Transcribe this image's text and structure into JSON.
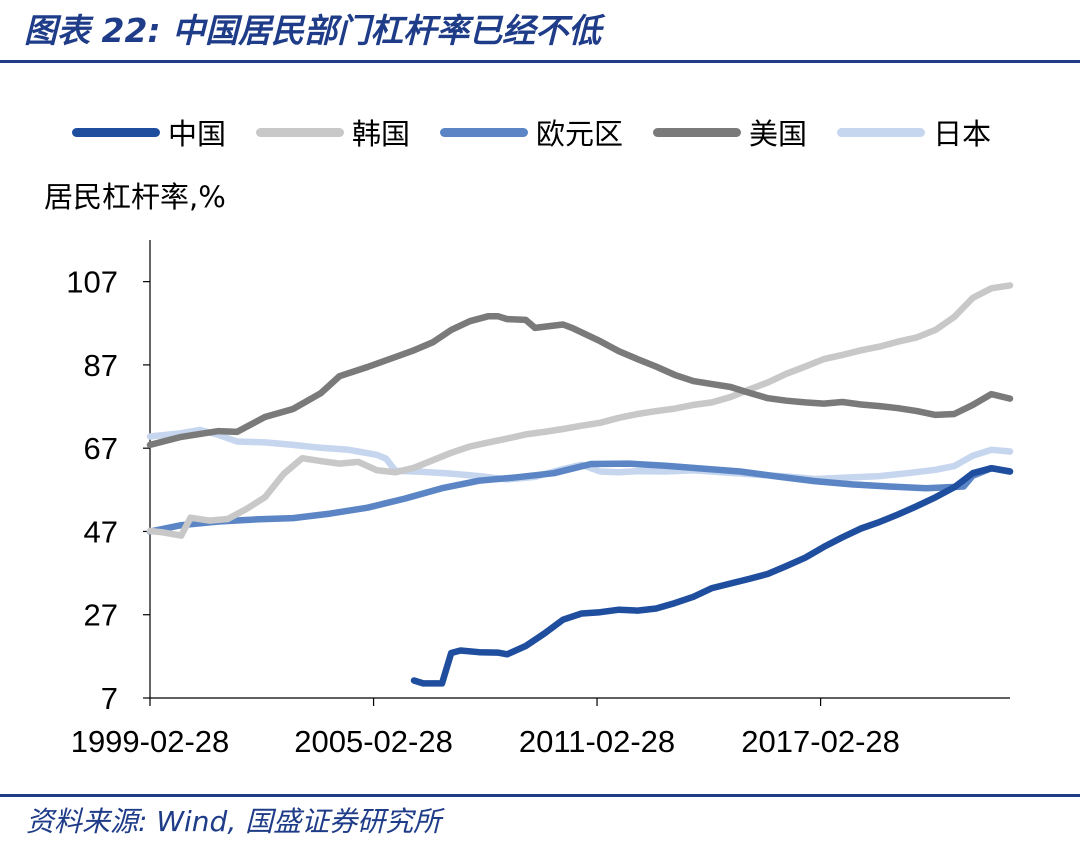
{
  "header": {
    "title": "图表 22:  中国居民部门杠杆率已经不低"
  },
  "source": "资料来源: Wind, 国盛证券研究所",
  "colors": {
    "title_blue": "#1F3C88",
    "china": "#1F4E9F",
    "korea": "#C8C8C8",
    "eurozone": "#5B85C5",
    "usa": "#7A7A7A",
    "japan": "#C5D6EE"
  },
  "chart_data": {
    "type": "line",
    "title": "",
    "ylabel": "居民杠杆率,%",
    "xlabel": "",
    "ylim": [
      7,
      117
    ],
    "xlim": [
      "1999-02-28",
      "2022-03-31"
    ],
    "y_ticks": [
      "107",
      "87",
      "67",
      "47",
      "27",
      "7"
    ],
    "x_ticks": [
      "1999-02-28",
      "2005-02-28",
      "2011-02-28",
      "2017-02-28"
    ],
    "legend_position": "top",
    "grid": false,
    "series": [
      {
        "name": "中国",
        "color": "#1F4E9F",
        "points": [
          [
            "2006-03-31",
            11.2
          ],
          [
            "2006-06-30",
            10.5
          ],
          [
            "2006-12-31",
            10.5
          ],
          [
            "2007-03-31",
            17.8
          ],
          [
            "2007-06-30",
            18.4
          ],
          [
            "2007-12-31",
            18.0
          ],
          [
            "2008-06-30",
            17.9
          ],
          [
            "2008-09-30",
            17.5
          ],
          [
            "2009-03-31",
            19.5
          ],
          [
            "2009-09-30",
            22.5
          ],
          [
            "2010-03-31",
            25.8
          ],
          [
            "2010-09-30",
            27.3
          ],
          [
            "2011-03-31",
            27.6
          ],
          [
            "2011-09-30",
            28.2
          ],
          [
            "2012-03-31",
            28.0
          ],
          [
            "2012-09-30",
            28.5
          ],
          [
            "2013-03-31",
            29.8
          ],
          [
            "2013-09-30",
            31.3
          ],
          [
            "2014-03-31",
            33.4
          ],
          [
            "2014-09-30",
            34.5
          ],
          [
            "2015-03-31",
            35.6
          ],
          [
            "2015-09-30",
            36.8
          ],
          [
            "2016-03-31",
            38.7
          ],
          [
            "2016-09-30",
            40.7
          ],
          [
            "2017-03-31",
            43.3
          ],
          [
            "2017-09-30",
            45.6
          ],
          [
            "2018-03-31",
            47.7
          ],
          [
            "2018-09-30",
            49.3
          ],
          [
            "2019-03-31",
            51.1
          ],
          [
            "2019-09-30",
            53.1
          ],
          [
            "2020-03-31",
            55.2
          ],
          [
            "2020-09-30",
            57.6
          ],
          [
            "2021-03-31",
            61.0
          ],
          [
            "2021-09-30",
            62.2
          ],
          [
            "2022-03-31",
            61.4
          ]
        ]
      },
      {
        "name": "韩国",
        "color": "#C8C8C8",
        "points": [
          [
            "1999-02-28",
            47.1
          ],
          [
            "1999-06-30",
            46.8
          ],
          [
            "1999-12-31",
            46.0
          ],
          [
            "2000-03-31",
            50.3
          ],
          [
            "2000-09-30",
            49.6
          ],
          [
            "2001-03-31",
            50.0
          ],
          [
            "2001-09-30",
            52.4
          ],
          [
            "2002-03-31",
            55.2
          ],
          [
            "2002-09-30",
            60.8
          ],
          [
            "2003-03-31",
            64.6
          ],
          [
            "2003-09-30",
            63.9
          ],
          [
            "2004-03-31",
            63.3
          ],
          [
            "2004-09-30",
            63.7
          ],
          [
            "2005-03-31",
            61.7
          ],
          [
            "2005-09-30",
            61.2
          ],
          [
            "2006-03-31",
            62.3
          ],
          [
            "2006-09-30",
            64.1
          ],
          [
            "2007-03-31",
            65.9
          ],
          [
            "2007-09-30",
            67.4
          ],
          [
            "2008-03-31",
            68.4
          ],
          [
            "2008-09-30",
            69.3
          ],
          [
            "2009-03-31",
            70.3
          ],
          [
            "2009-09-30",
            70.9
          ],
          [
            "2010-03-31",
            71.6
          ],
          [
            "2010-09-30",
            72.4
          ],
          [
            "2011-03-31",
            73.1
          ],
          [
            "2011-09-30",
            74.3
          ],
          [
            "2012-03-31",
            75.2
          ],
          [
            "2012-09-30",
            75.9
          ],
          [
            "2013-03-31",
            76.5
          ],
          [
            "2013-09-30",
            77.4
          ],
          [
            "2014-03-31",
            78.0
          ],
          [
            "2014-09-30",
            79.3
          ],
          [
            "2015-03-31",
            81.1
          ],
          [
            "2015-09-30",
            82.8
          ],
          [
            "2016-03-31",
            84.9
          ],
          [
            "2016-09-30",
            86.6
          ],
          [
            "2017-03-31",
            88.4
          ],
          [
            "2017-09-30",
            89.4
          ],
          [
            "2018-03-31",
            90.5
          ],
          [
            "2018-09-30",
            91.4
          ],
          [
            "2019-03-31",
            92.6
          ],
          [
            "2019-09-30",
            93.6
          ],
          [
            "2020-03-31",
            95.4
          ],
          [
            "2020-09-30",
            98.5
          ],
          [
            "2021-03-31",
            103.1
          ],
          [
            "2021-09-30",
            105.4
          ],
          [
            "2022-03-31",
            106.1
          ]
        ]
      },
      {
        "name": "欧元区",
        "color": "#5B85C5",
        "points": [
          [
            "1999-02-28",
            47.0
          ],
          [
            "1999-12-31",
            48.5
          ],
          [
            "2000-12-31",
            49.4
          ],
          [
            "2001-12-31",
            49.9
          ],
          [
            "2002-12-31",
            50.2
          ],
          [
            "2003-12-31",
            51.3
          ],
          [
            "2004-12-31",
            52.7
          ],
          [
            "2005-12-31",
            54.9
          ],
          [
            "2006-12-31",
            57.4
          ],
          [
            "2007-12-31",
            59.2
          ],
          [
            "2008-12-31",
            60.0
          ],
          [
            "2009-12-31",
            61.0
          ],
          [
            "2010-12-31",
            63.2
          ],
          [
            "2011-12-31",
            63.3
          ],
          [
            "2012-12-31",
            62.8
          ],
          [
            "2013-12-31",
            62.1
          ],
          [
            "2014-12-31",
            61.4
          ],
          [
            "2015-12-31",
            60.2
          ],
          [
            "2016-12-31",
            59.1
          ],
          [
            "2017-12-31",
            58.3
          ],
          [
            "2018-12-31",
            57.8
          ],
          [
            "2019-12-31",
            57.4
          ],
          [
            "2020-12-31",
            57.8
          ],
          [
            "2021-03-31",
            60.4
          ],
          [
            "2021-09-30",
            62.2
          ],
          [
            "2022-03-31",
            61.4
          ]
        ]
      },
      {
        "name": "美国",
        "color": "#7A7A7A",
        "points": [
          [
            "1999-02-28",
            67.8
          ],
          [
            "1999-12-31",
            69.7
          ],
          [
            "2000-12-31",
            71.1
          ],
          [
            "2001-06-30",
            70.9
          ],
          [
            "2002-03-31",
            74.5
          ],
          [
            "2002-12-31",
            76.4
          ],
          [
            "2003-09-30",
            80.2
          ],
          [
            "2004-03-31",
            84.3
          ],
          [
            "2004-12-31",
            86.5
          ],
          [
            "2005-09-30",
            88.9
          ],
          [
            "2006-03-31",
            90.5
          ],
          [
            "2006-09-30",
            92.4
          ],
          [
            "2007-03-31",
            95.4
          ],
          [
            "2007-09-30",
            97.5
          ],
          [
            "2008-03-31",
            98.7
          ],
          [
            "2008-06-30",
            98.7
          ],
          [
            "2008-09-30",
            98.0
          ],
          [
            "2009-03-31",
            97.8
          ],
          [
            "2009-06-30",
            95.9
          ],
          [
            "2010-03-31",
            96.7
          ],
          [
            "2010-06-30",
            95.9
          ],
          [
            "2011-03-31",
            92.7
          ],
          [
            "2011-09-30",
            90.3
          ],
          [
            "2012-03-31",
            88.4
          ],
          [
            "2012-09-30",
            86.6
          ],
          [
            "2013-03-31",
            84.6
          ],
          [
            "2013-09-30",
            83.1
          ],
          [
            "2014-03-31",
            82.4
          ],
          [
            "2014-09-30",
            81.7
          ],
          [
            "2015-03-31",
            80.3
          ],
          [
            "2015-09-30",
            79.0
          ],
          [
            "2016-03-31",
            78.4
          ],
          [
            "2016-09-30",
            78.0
          ],
          [
            "2017-03-31",
            77.7
          ],
          [
            "2017-09-30",
            78.1
          ],
          [
            "2018-03-31",
            77.5
          ],
          [
            "2018-09-30",
            77.1
          ],
          [
            "2019-03-31",
            76.6
          ],
          [
            "2019-09-30",
            75.9
          ],
          [
            "2020-03-31",
            75.0
          ],
          [
            "2020-09-30",
            75.2
          ],
          [
            "2021-03-31",
            77.4
          ],
          [
            "2021-09-30",
            80.0
          ],
          [
            "2022-03-31",
            78.9
          ]
        ]
      },
      {
        "name": "日本",
        "color": "#C5D6EE",
        "points": [
          [
            "1999-02-28",
            69.8
          ],
          [
            "1999-12-31",
            70.6
          ],
          [
            "2000-06-30",
            71.4
          ],
          [
            "2000-12-31",
            70.2
          ],
          [
            "2001-06-30",
            68.6
          ],
          [
            "2002-03-31",
            68.4
          ],
          [
            "2002-12-31",
            67.8
          ],
          [
            "2003-09-30",
            67.1
          ],
          [
            "2004-06-30",
            66.6
          ],
          [
            "2005-03-31",
            65.4
          ],
          [
            "2005-06-30",
            64.5
          ],
          [
            "2005-09-30",
            61.6
          ],
          [
            "2006-06-30",
            61.3
          ],
          [
            "2007-03-31",
            60.9
          ],
          [
            "2007-12-31",
            60.3
          ],
          [
            "2008-09-30",
            59.5
          ],
          [
            "2009-06-30",
            60.1
          ],
          [
            "2010-03-31",
            62.0
          ],
          [
            "2010-09-30",
            63.0
          ],
          [
            "2011-03-31",
            61.4
          ],
          [
            "2011-09-30",
            61.2
          ],
          [
            "2012-03-31",
            61.5
          ],
          [
            "2012-12-31",
            61.4
          ],
          [
            "2013-09-30",
            61.7
          ],
          [
            "2014-06-30",
            61.2
          ],
          [
            "2015-06-30",
            60.6
          ],
          [
            "2016-03-31",
            60.2
          ],
          [
            "2016-12-31",
            59.6
          ],
          [
            "2017-09-30",
            59.9
          ],
          [
            "2018-09-30",
            60.3
          ],
          [
            "2019-06-30",
            61.0
          ],
          [
            "2020-03-31",
            61.8
          ],
          [
            "2020-09-30",
            62.7
          ],
          [
            "2021-03-31",
            65.2
          ],
          [
            "2021-09-30",
            66.6
          ],
          [
            "2022-03-31",
            66.2
          ]
        ]
      }
    ]
  }
}
